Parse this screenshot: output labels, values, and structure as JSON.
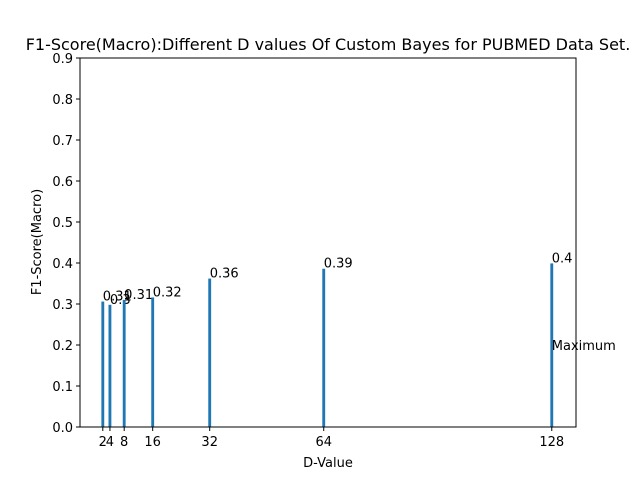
{
  "chart_data": {
    "type": "bar",
    "title": "F1-Score(Macro):Different D values Of Custom Bayes for PUBMED Data Set.",
    "xlabel": "D-Value",
    "ylabel": "F1-Score(Macro)",
    "x": [
      2,
      4,
      8,
      16,
      32,
      64,
      128
    ],
    "values": [
      0.306,
      0.298,
      0.31,
      0.316,
      0.362,
      0.386,
      0.399
    ],
    "value_labels": [
      "0.31",
      "0.3",
      "0.31",
      "0.32",
      "0.36",
      "0.39",
      "0.4"
    ],
    "bar_width": 0.8,
    "color": "#1f77b4",
    "xlim": [
      -4.4,
      134.8
    ],
    "xticks": [
      2,
      4,
      8,
      16,
      32,
      64,
      128
    ],
    "ylim": [
      0,
      0.9
    ],
    "yticks": [
      0.0,
      0.1,
      0.2,
      0.3,
      0.4,
      0.5,
      0.6,
      0.7,
      0.8,
      0.9
    ],
    "annotations": [
      {
        "text": "Maximum",
        "x": 128,
        "y": 0.2
      }
    ]
  }
}
